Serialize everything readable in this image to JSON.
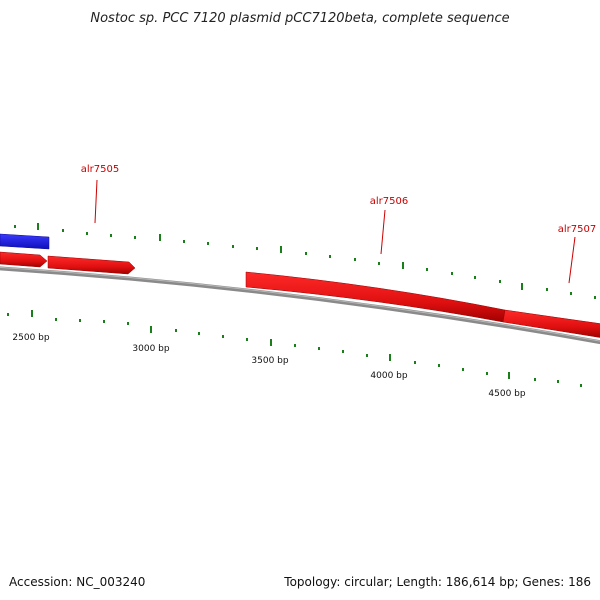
{
  "title": "Nostoc sp. PCC 7120 plasmid pCC7120beta, complete sequence",
  "footer": {
    "accession": "Accession: NC_003240",
    "summary": "Topology: circular; Length: 186,614 bp; Genes: 186"
  },
  "colors": {
    "gene_forward": "#ee1111",
    "gene_other": "#1f1fe6",
    "backbone": "#8a8a8a",
    "tick": "#1a7f1a",
    "label": "#cc0000"
  },
  "genes": [
    {
      "name": "alr7505",
      "labeled": true
    },
    {
      "name": "alr7506",
      "labeled": true
    },
    {
      "name": "alr7507",
      "labeled": true
    }
  ],
  "bp_labels": [
    "2500 bp",
    "3000 bp",
    "3500 bp",
    "4000 bp",
    "4500 bp"
  ]
}
